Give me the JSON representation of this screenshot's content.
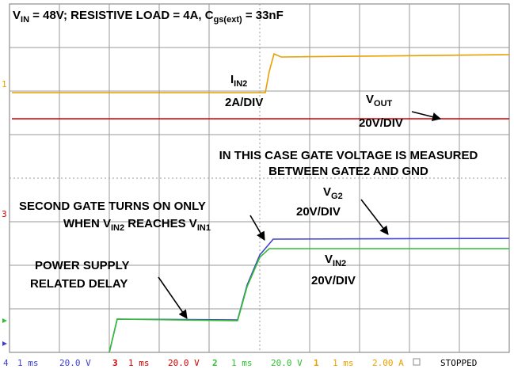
{
  "title": [
    "V",
    "IN",
    " = 48V; RESISTIVE LOAD = 4A, C",
    "gs(ext)",
    " = 33nF"
  ],
  "annotations": {
    "iin2": {
      "name": [
        "I",
        "IN2"
      ],
      "scale": "2A/DIV"
    },
    "vout": {
      "name": [
        "V",
        "OUT"
      ],
      "scale": "20V/DIV"
    },
    "gate_note": [
      "IN THIS CASE GATE VOLTAGE IS MEASURED",
      "BETWEEN GATE2 AND GND"
    ],
    "second_gate": {
      "line1": "SECOND GATE TURNS ON ONLY",
      "line2": [
        "WHEN V",
        "IN2",
        " REACHES V",
        "IN1"
      ]
    },
    "vg2": {
      "name": [
        "V",
        "G2"
      ],
      "scale": "20V/DIV"
    },
    "vin2": {
      "name": [
        "V",
        "IN2"
      ],
      "scale": "20V/DIV"
    },
    "delay": [
      "POWER SUPPLY",
      "RELATED DELAY"
    ]
  },
  "channel_markers": {
    "ch1": "1",
    "ch3": "3"
  },
  "status_bar": {
    "ch4": {
      "id": "4",
      "time": "1 ms",
      "scale": "20.0 V"
    },
    "ch3": {
      "id": "3",
      "time": "1 ms",
      "scale": "20.0 V"
    },
    "ch2": {
      "id": "2",
      "time": "1 ms",
      "scale": "20.0 V"
    },
    "ch1": {
      "id": "1",
      "time": "1 ms",
      "scale": "2.00 A"
    },
    "state": "STOPPED"
  }
}
